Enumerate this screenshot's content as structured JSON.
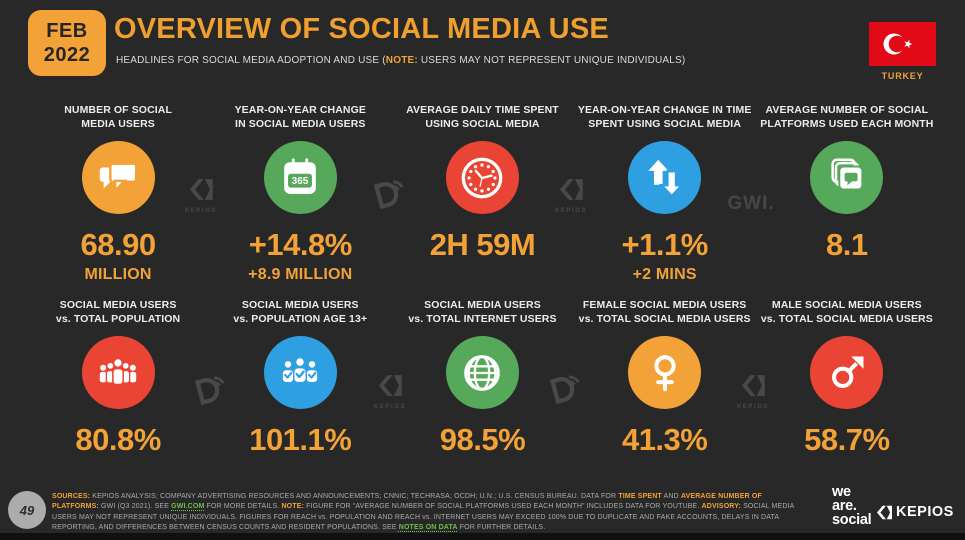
{
  "meta": {
    "date_line1": "FEB",
    "date_line2": "2022",
    "page_number": "49"
  },
  "header": {
    "title": "OVERVIEW OF SOCIAL MEDIA USE",
    "subtitle_segments": [
      {
        "t": "HEADLINES FOR SOCIAL MEDIA ADOPTION AND USE ("
      },
      {
        "t": "NOTE:",
        "s": "o"
      },
      {
        "t": " USERS MAY NOT REPRESENT UNIQUE INDIVIDUALS)"
      }
    ],
    "country": "TURKEY"
  },
  "theme": {
    "background": "#282828",
    "accent_orange": "#F2A237",
    "green": "#56A85A",
    "red": "#EA4435",
    "blue": "#2E9FE0",
    "flag_red": "#E30A17",
    "watermark_gray": "#4D4D4D",
    "link_green": "#6FBF4A"
  },
  "rows": [
    [
      {
        "label_1": "NUMBER OF SOCIAL",
        "label_2": "MEDIA USERS",
        "value": "68.90",
        "sub": "MILLION",
        "icon": "chat-bubbles",
        "color": "#F2A237"
      },
      {
        "label_1": "YEAR-ON-YEAR CHANGE",
        "label_2": "IN SOCIAL MEDIA USERS",
        "value": "+14.8%",
        "sub": "+8.9 MILLION",
        "icon": "calendar-365",
        "color": "#56A85A"
      },
      {
        "label_1": "AVERAGE DAILY TIME SPENT",
        "label_2": "USING SOCIAL MEDIA",
        "value": "2H 59M",
        "sub": "",
        "icon": "clock",
        "color": "#EA4435"
      },
      {
        "label_1": "YEAR-ON-YEAR CHANGE IN TIME",
        "label_2": "SPENT USING SOCIAL MEDIA",
        "value": "+1.1%",
        "sub": "+2 MINS",
        "icon": "arrows-up-down",
        "color": "#2E9FE0"
      },
      {
        "label_1": "AVERAGE NUMBER OF SOCIAL",
        "label_2": "PLATFORMS USED EACH MONTH",
        "value": "8.1",
        "sub": "",
        "icon": "stacked-cards-chat",
        "color": "#56A85A"
      }
    ],
    [
      {
        "label_1": "SOCIAL MEDIA USERS",
        "label_2": "vs. TOTAL POPULATION",
        "value": "80.8%",
        "sub": "",
        "icon": "people-crowd",
        "color": "#EA4435"
      },
      {
        "label_1": "SOCIAL MEDIA USERS",
        "label_2": "vs. POPULATION AGE 13+",
        "value": "101.1%",
        "sub": "",
        "icon": "people-check",
        "color": "#2E9FE0"
      },
      {
        "label_1": "SOCIAL MEDIA USERS",
        "label_2": "vs. TOTAL INTERNET USERS",
        "value": "98.5%",
        "sub": "",
        "icon": "globe",
        "color": "#56A85A"
      },
      {
        "label_1": "FEMALE SOCIAL MEDIA USERS",
        "label_2": "vs. TOTAL SOCIAL MEDIA USERS",
        "value": "41.3%",
        "sub": "",
        "icon": "female-symbol",
        "color": "#F2A237"
      },
      {
        "label_1": "MALE SOCIAL MEDIA USERS",
        "label_2": "vs. TOTAL SOCIAL MEDIA USERS",
        "value": "58.7%",
        "sub": "",
        "icon": "male-symbol",
        "color": "#EA4435"
      }
    ]
  ],
  "watermarks": {
    "kepios_label": "KEPIOS",
    "gwi_label": "GWI."
  },
  "footer": {
    "sources_segments": [
      {
        "t": "SOURCES:",
        "s": "o"
      },
      {
        "t": " KEPIOS ANALYSIS; COMPANY ADVERTISING RESOURCES AND ANNOUNCEMENTS; CNNIC; TECHRASA; OCDH; U.N.; U.S. CENSUS BUREAU. DATA FOR "
      },
      {
        "t": "TIME SPENT",
        "s": "o"
      },
      {
        "t": " AND "
      },
      {
        "t": "AVERAGE NUMBER OF PLATFORMS:",
        "s": "o"
      },
      {
        "t": " GWI (Q3 2021). SEE "
      },
      {
        "t": "GWI.COM",
        "s": "g"
      },
      {
        "t": " FOR MORE DETAILS. "
      },
      {
        "t": "NOTE:",
        "s": "o"
      },
      {
        "t": " FIGURE FOR “AVERAGE NUMBER OF SOCIAL PLATFORMS USED EACH MONTH” INCLUDES DATA FOR YOUTUBE. "
      },
      {
        "t": "ADVISORY:",
        "s": "o"
      },
      {
        "t": " SOCIAL MEDIA USERS MAY NOT REPRESENT UNIQUE INDIVIDUALS. FIGURES FOR REACH vs. POPULATION AND REACH vs. INTERNET USERS MAY EXCEED 100% DUE TO DUPLICATE AND FAKE ACCOUNTS, DELAYS IN DATA REPORTING, AND DIFFERENCES BETWEEN CENSUS COUNTS AND RESIDENT POPULATIONS. SEE "
      },
      {
        "t": "NOTES ON DATA",
        "s": "g"
      },
      {
        "t": " FOR FURTHER DETAILS."
      }
    ],
    "weare_lines": [
      "we",
      "are.",
      "social"
    ],
    "kepios_logo_label": "KEPIOS"
  },
  "chart_data": {
    "type": "table",
    "title": "Overview of Social Media Use — Turkey, Feb 2022",
    "columns": [
      "metric",
      "value",
      "secondary"
    ],
    "rows": [
      [
        "Number of social media users",
        "68.90 million",
        ""
      ],
      [
        "Year-on-year change in social media users",
        "+14.8%",
        "+8.9 million"
      ],
      [
        "Average daily time spent using social media",
        "2h 59m",
        ""
      ],
      [
        "Year-on-year change in time spent using social media",
        "+1.1%",
        "+2 mins"
      ],
      [
        "Average number of social platforms used each month",
        "8.1",
        ""
      ],
      [
        "Social media users vs. total population",
        "80.8%",
        ""
      ],
      [
        "Social media users vs. population age 13+",
        "101.1%",
        ""
      ],
      [
        "Social media users vs. total internet users",
        "98.5%",
        ""
      ],
      [
        "Female social media users vs. total social media users",
        "41.3%",
        ""
      ],
      [
        "Male social media users vs. total social media users",
        "58.7%",
        ""
      ]
    ]
  }
}
